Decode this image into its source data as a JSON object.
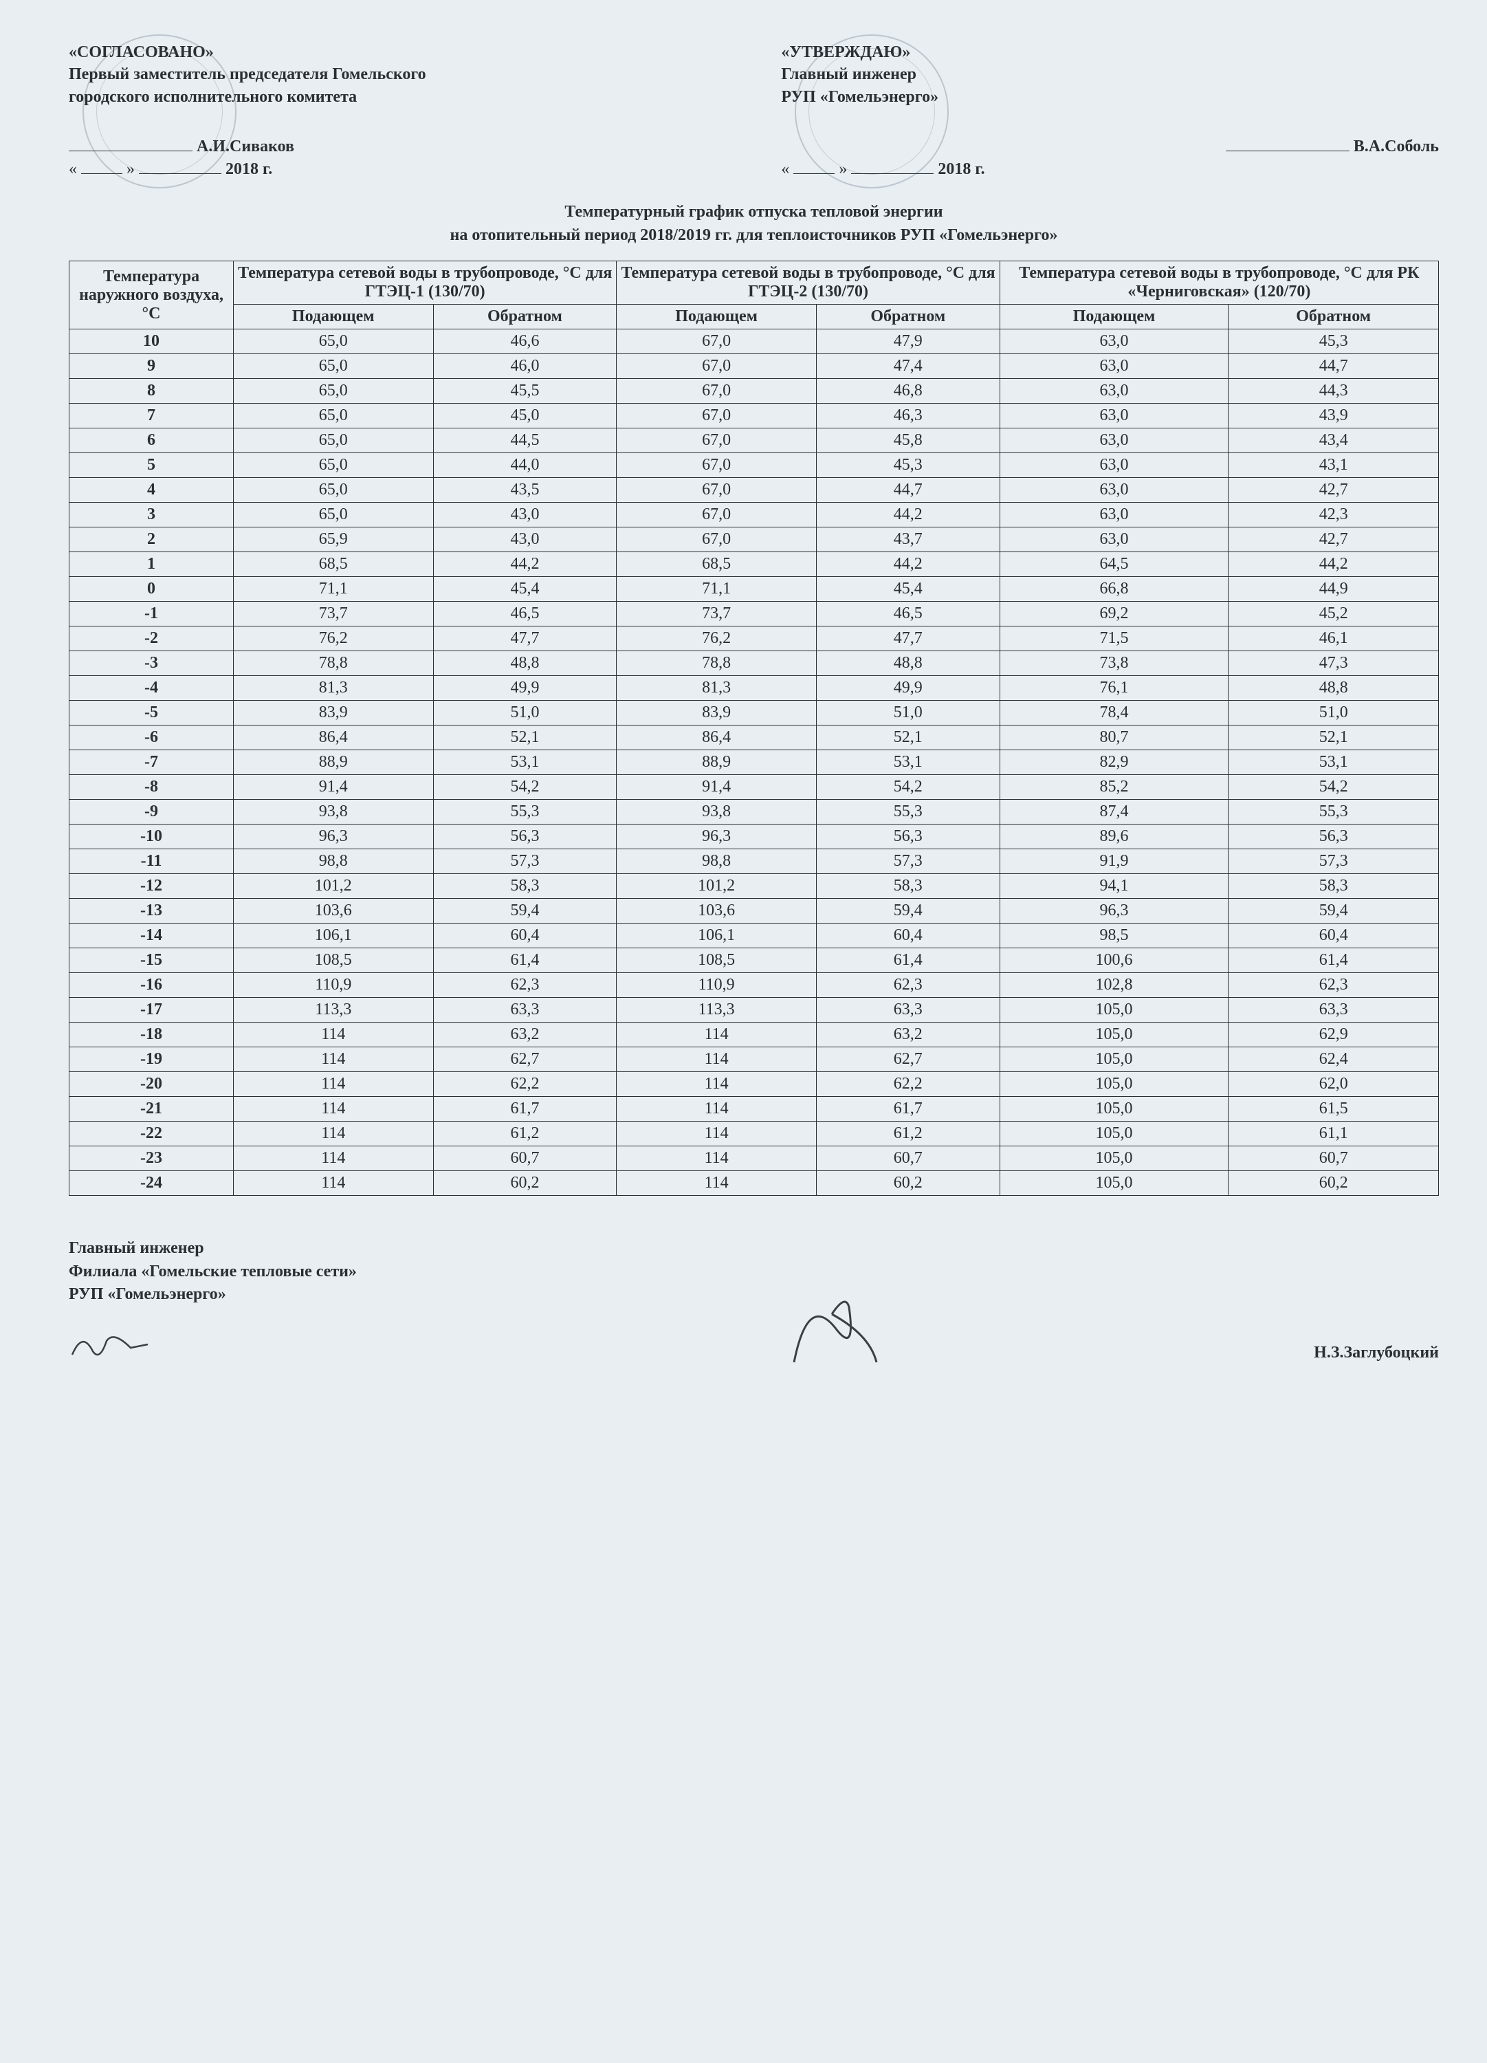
{
  "approvals": {
    "left": {
      "heading": "«СОГЛАСОВАНО»",
      "position_l1": "Первый заместитель председателя Гомельского",
      "position_l2": "городского исполнительного комитета",
      "name": "А.И.Сиваков",
      "date_prefix": "«",
      "date_mid": "»",
      "year": "2018 г."
    },
    "right": {
      "heading": "«УТВЕРЖДАЮ»",
      "position_l1": "Главный инженер",
      "position_l2": "РУП «Гомельэнерго»",
      "name": "В.А.Соболь",
      "date_prefix": "«",
      "date_mid": "»",
      "year": "2018 г."
    }
  },
  "title": {
    "l1": "Температурный график отпуска тепловой энергии",
    "l2": "на отопительный период 2018/2019 гг. для теплоисточников РУП «Гомельэнерго»"
  },
  "table": {
    "col_main": "Температура наружного воздуха, °С",
    "group1": "Температура сетевой воды в трубопроводе, °С для ГТЭЦ-1 (130/70)",
    "group2": "Температура сетевой воды в трубопроводе, °С для ГТЭЦ-2 (130/70)",
    "group3": "Температура сетевой воды в трубопроводе, °С для РК «Черниговская» (120/70)",
    "sub_supply": "Подающем",
    "sub_return": "Обратном",
    "rows": [
      {
        "t": "10",
        "a1": "65,0",
        "a2": "46,6",
        "b1": "67,0",
        "b2": "47,9",
        "c1": "63,0",
        "c2": "45,3"
      },
      {
        "t": "9",
        "a1": "65,0",
        "a2": "46,0",
        "b1": "67,0",
        "b2": "47,4",
        "c1": "63,0",
        "c2": "44,7"
      },
      {
        "t": "8",
        "a1": "65,0",
        "a2": "45,5",
        "b1": "67,0",
        "b2": "46,8",
        "c1": "63,0",
        "c2": "44,3"
      },
      {
        "t": "7",
        "a1": "65,0",
        "a2": "45,0",
        "b1": "67,0",
        "b2": "46,3",
        "c1": "63,0",
        "c2": "43,9"
      },
      {
        "t": "6",
        "a1": "65,0",
        "a2": "44,5",
        "b1": "67,0",
        "b2": "45,8",
        "c1": "63,0",
        "c2": "43,4"
      },
      {
        "t": "5",
        "a1": "65,0",
        "a2": "44,0",
        "b1": "67,0",
        "b2": "45,3",
        "c1": "63,0",
        "c2": "43,1"
      },
      {
        "t": "4",
        "a1": "65,0",
        "a2": "43,5",
        "b1": "67,0",
        "b2": "44,7",
        "c1": "63,0",
        "c2": "42,7"
      },
      {
        "t": "3",
        "a1": "65,0",
        "a2": "43,0",
        "b1": "67,0",
        "b2": "44,2",
        "c1": "63,0",
        "c2": "42,3"
      },
      {
        "t": "2",
        "a1": "65,9",
        "a2": "43,0",
        "b1": "67,0",
        "b2": "43,7",
        "c1": "63,0",
        "c2": "42,7"
      },
      {
        "t": "1",
        "a1": "68,5",
        "a2": "44,2",
        "b1": "68,5",
        "b2": "44,2",
        "c1": "64,5",
        "c2": "44,2"
      },
      {
        "t": "0",
        "a1": "71,1",
        "a2": "45,4",
        "b1": "71,1",
        "b2": "45,4",
        "c1": "66,8",
        "c2": "44,9"
      },
      {
        "t": "-1",
        "a1": "73,7",
        "a2": "46,5",
        "b1": "73,7",
        "b2": "46,5",
        "c1": "69,2",
        "c2": "45,2"
      },
      {
        "t": "-2",
        "a1": "76,2",
        "a2": "47,7",
        "b1": "76,2",
        "b2": "47,7",
        "c1": "71,5",
        "c2": "46,1"
      },
      {
        "t": "-3",
        "a1": "78,8",
        "a2": "48,8",
        "b1": "78,8",
        "b2": "48,8",
        "c1": "73,8",
        "c2": "47,3"
      },
      {
        "t": "-4",
        "a1": "81,3",
        "a2": "49,9",
        "b1": "81,3",
        "b2": "49,9",
        "c1": "76,1",
        "c2": "48,8"
      },
      {
        "t": "-5",
        "a1": "83,9",
        "a2": "51,0",
        "b1": "83,9",
        "b2": "51,0",
        "c1": "78,4",
        "c2": "51,0"
      },
      {
        "t": "-6",
        "a1": "86,4",
        "a2": "52,1",
        "b1": "86,4",
        "b2": "52,1",
        "c1": "80,7",
        "c2": "52,1"
      },
      {
        "t": "-7",
        "a1": "88,9",
        "a2": "53,1",
        "b1": "88,9",
        "b2": "53,1",
        "c1": "82,9",
        "c2": "53,1"
      },
      {
        "t": "-8",
        "a1": "91,4",
        "a2": "54,2",
        "b1": "91,4",
        "b2": "54,2",
        "c1": "85,2",
        "c2": "54,2"
      },
      {
        "t": "-9",
        "a1": "93,8",
        "a2": "55,3",
        "b1": "93,8",
        "b2": "55,3",
        "c1": "87,4",
        "c2": "55,3"
      },
      {
        "t": "-10",
        "a1": "96,3",
        "a2": "56,3",
        "b1": "96,3",
        "b2": "56,3",
        "c1": "89,6",
        "c2": "56,3"
      },
      {
        "t": "-11",
        "a1": "98,8",
        "a2": "57,3",
        "b1": "98,8",
        "b2": "57,3",
        "c1": "91,9",
        "c2": "57,3"
      },
      {
        "t": "-12",
        "a1": "101,2",
        "a2": "58,3",
        "b1": "101,2",
        "b2": "58,3",
        "c1": "94,1",
        "c2": "58,3"
      },
      {
        "t": "-13",
        "a1": "103,6",
        "a2": "59,4",
        "b1": "103,6",
        "b2": "59,4",
        "c1": "96,3",
        "c2": "59,4"
      },
      {
        "t": "-14",
        "a1": "106,1",
        "a2": "60,4",
        "b1": "106,1",
        "b2": "60,4",
        "c1": "98,5",
        "c2": "60,4"
      },
      {
        "t": "-15",
        "a1": "108,5",
        "a2": "61,4",
        "b1": "108,5",
        "b2": "61,4",
        "c1": "100,6",
        "c2": "61,4"
      },
      {
        "t": "-16",
        "a1": "110,9",
        "a2": "62,3",
        "b1": "110,9",
        "b2": "62,3",
        "c1": "102,8",
        "c2": "62,3"
      },
      {
        "t": "-17",
        "a1": "113,3",
        "a2": "63,3",
        "b1": "113,3",
        "b2": "63,3",
        "c1": "105,0",
        "c2": "63,3"
      },
      {
        "t": "-18",
        "a1": "114",
        "a2": "63,2",
        "b1": "114",
        "b2": "63,2",
        "c1": "105,0",
        "c2": "62,9"
      },
      {
        "t": "-19",
        "a1": "114",
        "a2": "62,7",
        "b1": "114",
        "b2": "62,7",
        "c1": "105,0",
        "c2": "62,4"
      },
      {
        "t": "-20",
        "a1": "114",
        "a2": "62,2",
        "b1": "114",
        "b2": "62,2",
        "c1": "105,0",
        "c2": "62,0"
      },
      {
        "t": "-21",
        "a1": "114",
        "a2": "61,7",
        "b1": "114",
        "b2": "61,7",
        "c1": "105,0",
        "c2": "61,5"
      },
      {
        "t": "-22",
        "a1": "114",
        "a2": "61,2",
        "b1": "114",
        "b2": "61,2",
        "c1": "105,0",
        "c2": "61,1"
      },
      {
        "t": "-23",
        "a1": "114",
        "a2": "60,7",
        "b1": "114",
        "b2": "60,7",
        "c1": "105,0",
        "c2": "60,7"
      },
      {
        "t": "-24",
        "a1": "114",
        "a2": "60,2",
        "b1": "114",
        "b2": "60,2",
        "c1": "105,0",
        "c2": "60,2"
      }
    ]
  },
  "footer": {
    "l1": "Главный инженер",
    "l2": "Филиала «Гомельские тепловые сети»",
    "l3": "РУП «Гомельэнерго»",
    "name": "Н.З.Заглубоцкий"
  },
  "colors": {
    "page_bg": "#e8eef2",
    "text": "#2a2f33",
    "border": "#2a2f33",
    "stamp": "rgba(60,80,100,0.25)"
  }
}
